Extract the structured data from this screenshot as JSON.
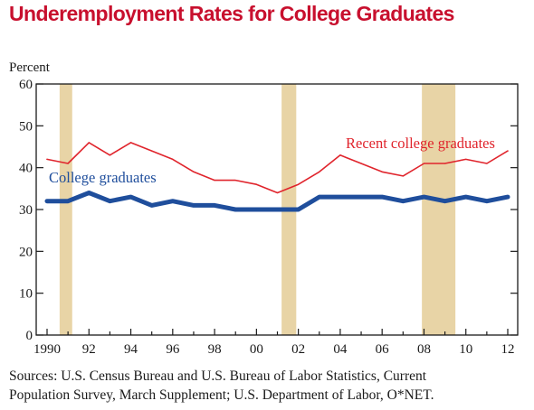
{
  "chart_data": {
    "type": "line",
    "title": "Underemployment Rates for College Graduates",
    "ylabel": "Percent",
    "xlabel": "",
    "xlim": [
      1990,
      2012
    ],
    "ylim": [
      0,
      60
    ],
    "yticks": [
      "0",
      "10",
      "20",
      "30",
      "40",
      "50",
      "60"
    ],
    "xticks": [
      {
        "year": 1990,
        "label": "1990"
      },
      {
        "year": 1992,
        "label": "92"
      },
      {
        "year": 1994,
        "label": "94"
      },
      {
        "year": 1996,
        "label": "96"
      },
      {
        "year": 1998,
        "label": "98"
      },
      {
        "year": 2000,
        "label": "00"
      },
      {
        "year": 2002,
        "label": "02"
      },
      {
        "year": 2004,
        "label": "04"
      },
      {
        "year": 2006,
        "label": "06"
      },
      {
        "year": 2008,
        "label": "08"
      },
      {
        "year": 2010,
        "label": "10"
      },
      {
        "year": 2012,
        "label": "12"
      }
    ],
    "recessions": [
      {
        "start": 1990.6,
        "end": 1991.2
      },
      {
        "start": 2001.2,
        "end": 2001.9
      },
      {
        "start": 2007.9,
        "end": 2009.5
      }
    ],
    "x": [
      1990,
      1991,
      1992,
      1993,
      1994,
      1995,
      1996,
      1997,
      1998,
      1999,
      2000,
      2001,
      2002,
      2003,
      2004,
      2005,
      2006,
      2007,
      2008,
      2009,
      2010,
      2011,
      2012
    ],
    "series": [
      {
        "name": "Recent college graduates",
        "color": "#e0242c",
        "values": [
          42,
          41,
          46,
          43,
          46,
          44,
          42,
          39,
          37,
          37,
          36,
          34,
          36,
          39,
          43,
          41,
          39,
          38,
          41,
          41,
          42,
          41,
          44
        ]
      },
      {
        "name": "College graduates",
        "color": "#1f4e9c",
        "values": [
          32,
          32,
          34,
          32,
          33,
          31,
          32,
          31,
          31,
          30,
          30,
          30,
          30,
          33,
          33,
          33,
          33,
          32,
          33,
          32,
          33,
          32,
          33
        ]
      }
    ],
    "grid": false,
    "recession_color": "#e8d4a6"
  },
  "source": {
    "line1": "Sources: U.S. Census Bureau and U.S. Bureau of Labor Statistics, Current",
    "line2": "Population Survey, March Supplement; U.S. Department of Labor, O*NET."
  }
}
